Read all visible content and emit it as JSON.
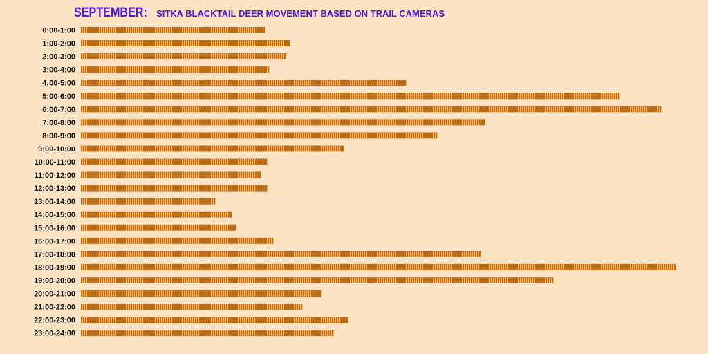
{
  "chart_data": {
    "type": "bar",
    "orientation": "horizontal",
    "title_month": "SEPTEMBER:",
    "title_rest": "SITKA BLACKTAIL DEER MOVEMENT BASED ON TRAIL CAMERAS",
    "categories": [
      "0:00-1:00",
      "1:00-2:00",
      "2:00-3:00",
      "3:00-4:00",
      "4:00-5:00",
      "5:00-6:00",
      "6:00-7:00",
      "7:00-8:00",
      "8:00-9:00",
      "9:00-10:00",
      "10:00-11:00",
      "11:00-12:00",
      "12:00-13:00",
      "13:00-14:00",
      "14:00-15:00",
      "15:00-16:00",
      "16:00-17:00",
      "17:00-18:00",
      "18:00-19:00",
      "19:00-20:00",
      "20:00-21:00",
      "21:00-22:00",
      "22:00-23:00",
      "23:00-24:00"
    ],
    "values": [
      89,
      101,
      99,
      91,
      157,
      260,
      280,
      195,
      172,
      127,
      90,
      87,
      90,
      65,
      73,
      75,
      93,
      193,
      287,
      228,
      116,
      107,
      129,
      122
    ],
    "highlighted_first_unit_category": "13:00-14:00",
    "grid": false,
    "colors": {
      "bar": "#c76a0a",
      "stripe": "#f3c890",
      "highlight": "#7a7a8a",
      "title": "#4a17e8",
      "background": "#fbe3c4"
    }
  }
}
